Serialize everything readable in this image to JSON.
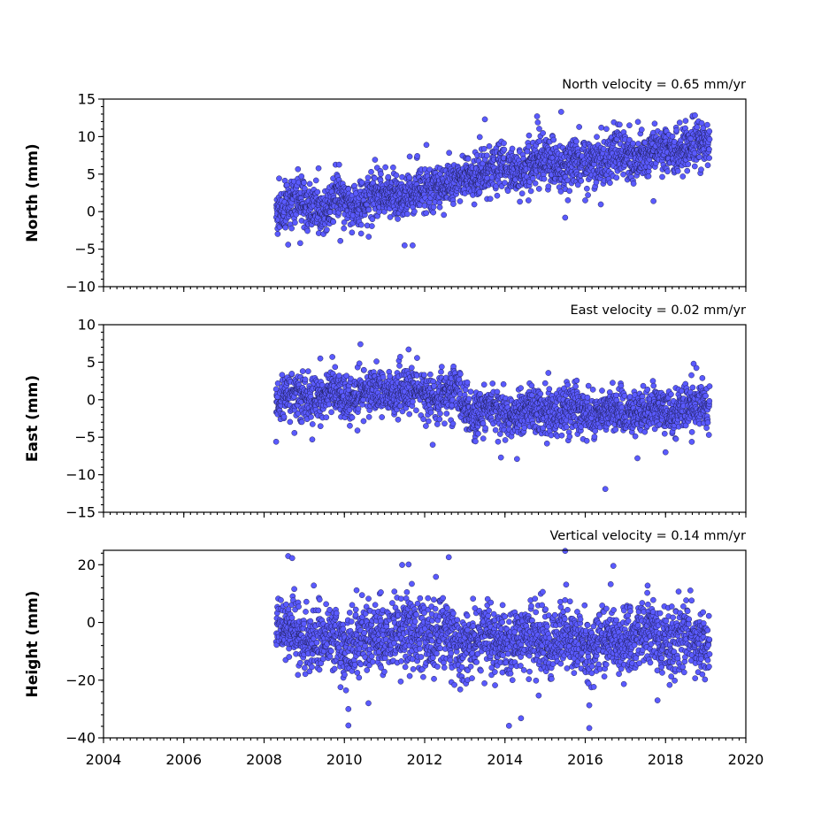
{
  "chart_data": [
    {
      "type": "scatter",
      "id": "north",
      "annotation": "North velocity = 0.65 mm/yr",
      "ylabel": "North (mm)",
      "xlabel": "",
      "xlim": [
        2004,
        2020
      ],
      "ylim": [
        -10,
        15
      ],
      "yticks": [
        -10,
        -5,
        0,
        5,
        10,
        15
      ],
      "ytick_labels": [
        "−10",
        "−5",
        "0",
        "5",
        "10",
        "15"
      ],
      "x_start": 2008.3,
      "x_end": 2019.1,
      "color": "#5a5aff",
      "series": [
        {
          "trend_points": [
            [
              2008.3,
              0.5
            ],
            [
              2010.0,
              1.2
            ],
            [
              2011.5,
              2.5
            ],
            [
              2012.9,
              4.0
            ],
            [
              2013.1,
              5.2
            ],
            [
              2015.0,
              6.2
            ],
            [
              2017.0,
              7.5
            ],
            [
              2019.1,
              8.8
            ]
          ],
          "scatter_sd": 1.6,
          "outliers": [
            [
              2013.5,
              12.3
            ],
            [
              2014.8,
              12.7
            ],
            [
              2015.4,
              13.3
            ],
            [
              2011.7,
              -4.5
            ],
            [
              2011.5,
              -4.5
            ],
            [
              2008.6,
              -4.4
            ],
            [
              2008.9,
              -4.2
            ],
            [
              2009.9,
              -3.9
            ],
            [
              2015.5,
              -0.8
            ],
            [
              2016.0,
              1.5
            ],
            [
              2017.7,
              1.4
            ],
            [
              2018.5,
              12.1
            ],
            [
              2016.4,
              11.2
            ],
            [
              2017.1,
              11.5
            ],
            [
              2018.9,
              11.8
            ]
          ]
        }
      ]
    },
    {
      "type": "scatter",
      "id": "east",
      "annotation": "East velocity = 0.02 mm/yr",
      "ylabel": "East (mm)",
      "xlabel": "",
      "xlim": [
        2004,
        2020
      ],
      "ylim": [
        -15,
        10
      ],
      "yticks": [
        -15,
        -10,
        -5,
        0,
        5,
        10
      ],
      "ytick_labels": [
        "−15",
        "−10",
        "−5",
        "0",
        "5",
        "10"
      ],
      "x_start": 2008.3,
      "x_end": 2019.1,
      "color": "#5a5aff",
      "series": [
        {
          "trend_points": [
            [
              2008.3,
              0.2
            ],
            [
              2010.0,
              0.8
            ],
            [
              2011.7,
              1.0
            ],
            [
              2012.9,
              0.6
            ],
            [
              2013.1,
              -1.6
            ],
            [
              2015.0,
              -1.6
            ],
            [
              2017.0,
              -1.7
            ],
            [
              2019.1,
              -1.0
            ]
          ],
          "scatter_sd": 1.5,
          "outliers": [
            [
              2010.4,
              7.4
            ],
            [
              2011.6,
              6.7
            ],
            [
              2009.7,
              5.7
            ],
            [
              2009.4,
              5.5
            ],
            [
              2010.8,
              5.1
            ],
            [
              2018.7,
              4.8
            ],
            [
              2016.5,
              -11.9
            ],
            [
              2014.3,
              -7.9
            ],
            [
              2017.3,
              -7.8
            ],
            [
              2013.9,
              -7.7
            ],
            [
              2008.3,
              -5.6
            ],
            [
              2009.2,
              -5.3
            ],
            [
              2012.2,
              -6.0
            ],
            [
              2018.0,
              -7.0
            ]
          ]
        }
      ]
    },
    {
      "type": "scatter",
      "id": "height",
      "annotation": "Vertical velocity = 0.14 mm/yr",
      "ylabel": "Height (mm)",
      "xlabel": "",
      "xlim": [
        2004,
        2020
      ],
      "ylim": [
        -40,
        25
      ],
      "yticks": [
        -40,
        -20,
        0,
        20
      ],
      "ytick_labels": [
        "−40",
        "−20",
        "0",
        "20"
      ],
      "x_start": 2008.3,
      "x_end": 2019.1,
      "color": "#5a5aff",
      "series": [
        {
          "trend_points": [
            [
              2008.3,
              -3.0
            ],
            [
              2010.0,
              -7.0
            ],
            [
              2011.5,
              -2.0
            ],
            [
              2013.0,
              -6.0
            ],
            [
              2014.5,
              -6.0
            ],
            [
              2016.0,
              -7.0
            ],
            [
              2017.5,
              -5.0
            ],
            [
              2019.1,
              -6.0
            ]
          ],
          "scatter_sd": 5.8,
          "outliers": [
            [
              2008.6,
              23.0
            ],
            [
              2008.7,
              22.3
            ],
            [
              2012.6,
              22.6
            ],
            [
              2015.5,
              24.8
            ],
            [
              2016.7,
              19.6
            ],
            [
              2011.6,
              20.1
            ],
            [
              2010.1,
              -35.7
            ],
            [
              2014.1,
              -35.8
            ],
            [
              2016.1,
              -36.6
            ],
            [
              2014.4,
              -33.2
            ],
            [
              2010.1,
              -30.0
            ],
            [
              2016.1,
              -28.7
            ],
            [
              2017.8,
              -27.0
            ],
            [
              2010.6,
              -28.0
            ]
          ]
        }
      ]
    }
  ],
  "x_axis": {
    "xlim": [
      2004,
      2020
    ],
    "ticks": [
      2004,
      2006,
      2008,
      2010,
      2012,
      2014,
      2016,
      2018,
      2020
    ],
    "tick_labels": [
      "2004",
      "2006",
      "2008",
      "2010",
      "2012",
      "2014",
      "2016",
      "2018",
      "2020"
    ]
  }
}
